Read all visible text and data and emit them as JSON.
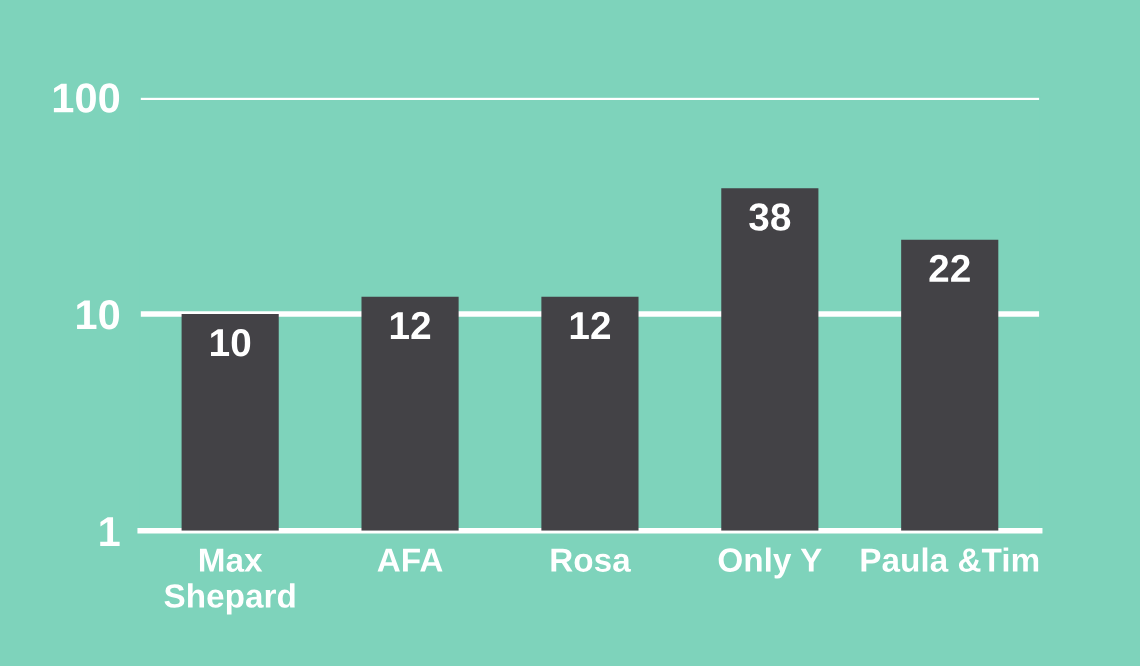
{
  "chart_data": {
    "type": "bar",
    "categories": [
      "Max\nShepard",
      "AFA",
      "Rosa",
      "Only Y",
      "Paula &Tim"
    ],
    "values": [
      10,
      12,
      12,
      38,
      22
    ],
    "color": "#434246",
    "log": true,
    "ylim": [
      1,
      100
    ],
    "yticks": [
      1,
      10,
      100
    ],
    "grid": "y",
    "data_labels": true
  }
}
